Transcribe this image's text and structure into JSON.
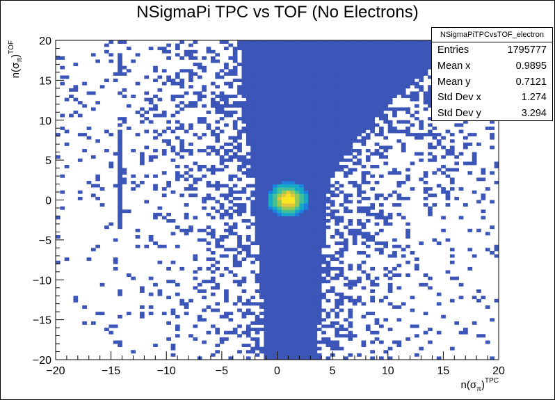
{
  "title": "NSigmaPi TPC vs TOF (No Electrons)",
  "stats": {
    "name": "NSigmaPiTPCvsTOF_electron",
    "rows": [
      {
        "label": "Entries",
        "value": "1795777"
      },
      {
        "label": "Mean x",
        "value": "0.9895"
      },
      {
        "label": "Mean y",
        "value": "0.7121"
      },
      {
        "label": "Std Dev x",
        "value": "1.274"
      },
      {
        "label": "Std Dev y",
        "value": "3.294"
      }
    ]
  },
  "chart_data": {
    "type": "heatmap",
    "title": "NSigmaPi TPC vs TOF (No Electrons)",
    "xlabel": {
      "base": "n(σ",
      "sub": "π",
      "close": ")",
      "sup": "TPC"
    },
    "ylabel": {
      "base": "n(σ",
      "sub": "π",
      "close": ")",
      "sup": "TOF"
    },
    "xlim": [
      -20,
      20
    ],
    "ylim": [
      -20,
      20
    ],
    "x_ticks": [
      -20,
      -15,
      -10,
      -5,
      0,
      5,
      10,
      15,
      20
    ],
    "y_ticks": [
      -20,
      -15,
      -10,
      -5,
      0,
      5,
      10,
      15,
      20
    ],
    "x_tick_labels": [
      "−20",
      "−15",
      "−10",
      "−5",
      "0",
      "5",
      "10",
      "15",
      "20"
    ],
    "y_tick_labels": [
      "−20",
      "−15",
      "−10",
      "−5",
      "0",
      "5",
      "10",
      "15",
      "20"
    ],
    "bins": {
      "nx": 100,
      "ny": 100
    },
    "peak": {
      "x": 0.9895,
      "y": 0.1,
      "sigma_x": 0.9,
      "sigma_y": 1.1
    },
    "band": {
      "y_top": 20,
      "y_bottom": -20,
      "top_xmin": -3.5,
      "top_xmax": 17.0,
      "waist_xmin": -2.0,
      "waist_xmax": 4.5,
      "bottom_xmin": -1.0,
      "bottom_xmax": 3.5
    },
    "stripe": {
      "x": -14.3,
      "y_ranges": [
        [
          -3.5,
          8.5
        ],
        [
          15.5,
          17.5
        ],
        [
          -12.0,
          -11.2
        ],
        [
          -18.2,
          -17.6
        ]
      ]
    },
    "colors": [
      "#3b55b8",
      "#1f7fe0",
      "#17a8c8",
      "#43c097",
      "#9bc84f",
      "#e2c53a",
      "#f8e721"
    ],
    "grid": false,
    "stats_box_position": "top-right"
  }
}
